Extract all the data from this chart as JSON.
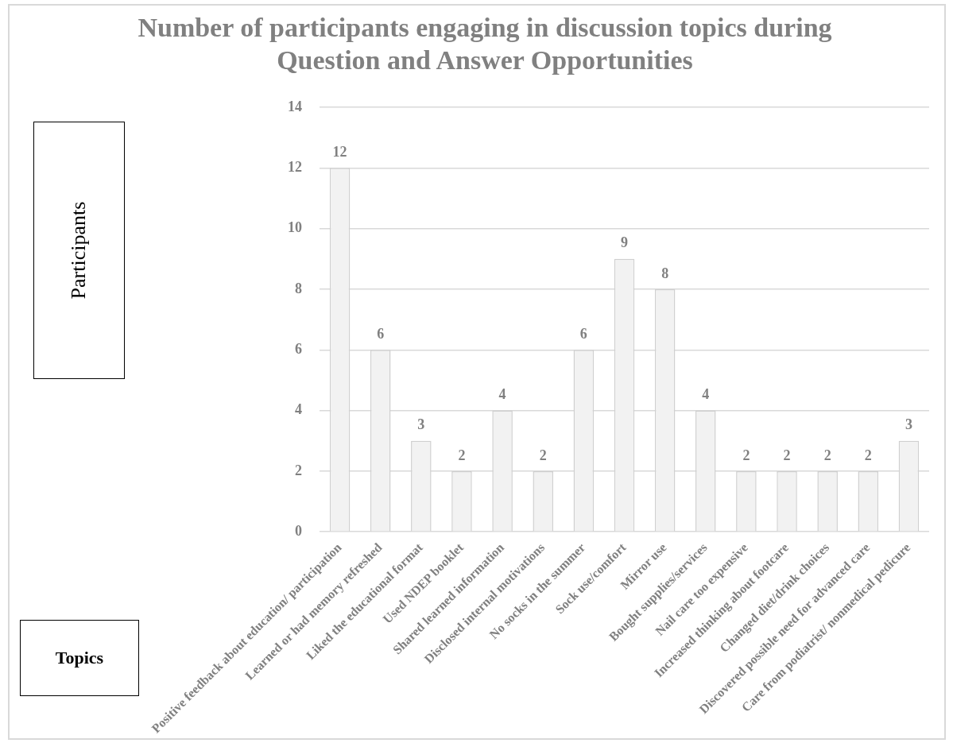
{
  "chart_data": {
    "type": "bar",
    "title": "Number of participants engaging in discussion topics during Question and Answer Opportunities",
    "xlabel": "Topics",
    "ylabel": "Participants",
    "categories": [
      "Positive feedback about education/ participation",
      "Learned or had memory refreshed",
      "Liked the educational format",
      "Used NDEP booklet",
      "Shared learned information",
      "Disclosed internal motivations",
      "No socks in the summer",
      "Sock use/comfort",
      "Mirror use",
      "Bought supplies/services",
      "Nail care too expensive",
      "Increased thinking about footcare",
      "Changed diet/drink choices",
      "Discovered possible need for advanced care",
      "Care from podiatrist/ nonmedical pedicure"
    ],
    "values": [
      12,
      6,
      3,
      2,
      4,
      2,
      6,
      9,
      8,
      4,
      2,
      2,
      2,
      2,
      3
    ],
    "color": "#f2f2f2",
    "ylim": [
      0,
      14
    ],
    "yticks": [
      0,
      2,
      4,
      6,
      8,
      10,
      12,
      14
    ],
    "grid": "y",
    "data_labels": true
  }
}
